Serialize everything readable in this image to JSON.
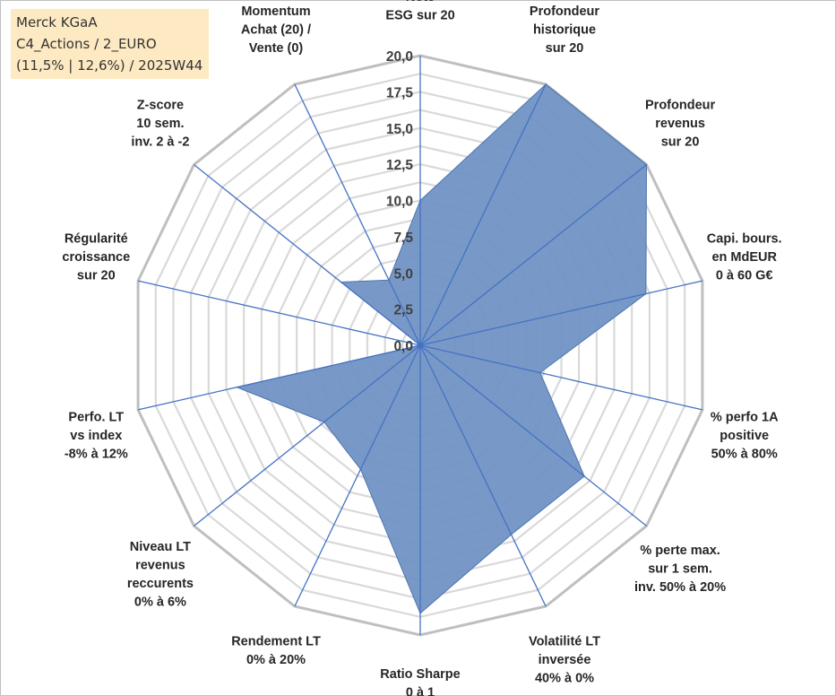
{
  "info": {
    "line1": "Merck KGaA",
    "line2": "C4_Actions / 2_EURO",
    "line3": "(11,5% | 12,6%) / 2025W44"
  },
  "chart_data": {
    "type": "radar",
    "axes": [
      [
        "Note",
        "ESG sur 20"
      ],
      [
        "Profondeur",
        "historique",
        "sur 20"
      ],
      [
        "Profondeur",
        "revenus",
        "sur 20"
      ],
      [
        "Capi. bours.",
        "en MdEUR",
        "0 à 60 G€"
      ],
      [
        "% perfo 1A",
        "positive",
        "50% à 80%"
      ],
      [
        "% perte max.",
        "sur 1 sem.",
        "inv. 50% à 20%"
      ],
      [
        "Volatilité LT",
        "inversée",
        "40% à 0%"
      ],
      [
        "Ratio Sharpe",
        "0 à 1"
      ],
      [
        "Rendement LT",
        "0% à 20%"
      ],
      [
        "Niveau LT",
        "revenus",
        "reccurents",
        "0% à 6%"
      ],
      [
        "Perfo. LT",
        "vs index",
        "-8% à 12%"
      ],
      [
        "Régularité",
        "croissance",
        "sur 20"
      ],
      [
        "Z-score",
        "10 sem.",
        "inv. 2 à -2"
      ],
      [
        "Momentum",
        "Achat (20) /",
        "Vente (0)"
      ]
    ],
    "series": [
      {
        "values": [
          10,
          20,
          20,
          16,
          8.5,
          14.5,
          14.5,
          18.5,
          9.5,
          8.5,
          13,
          0,
          7,
          5
        ]
      }
    ],
    "r_ticks": [
      "0,0",
      "2,5",
      "5,0",
      "7,5",
      "10,0",
      "12,5",
      "15,0",
      "17,5",
      "20,0"
    ],
    "r_range": [
      0,
      20
    ],
    "grid": true,
    "colors": {
      "fill": "#7194c4",
      "stroke": "#4c74ae",
      "spoke": "#4472c4",
      "ring": "#d9d9d9",
      "ring_outer": "#bfbfbf"
    }
  }
}
